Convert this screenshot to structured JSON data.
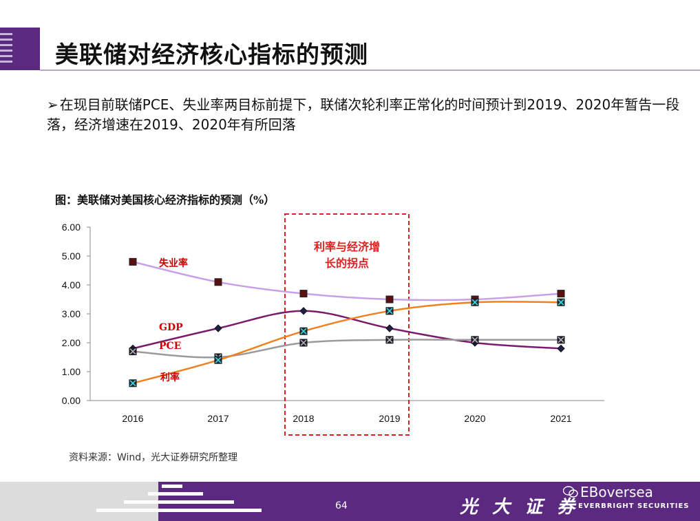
{
  "slide": {
    "title": "美联储对经济核心指标的预测",
    "bullet_text": "在现目前联储PCE、失业率两目标前提下，联储次轮利率正常化的时间预计到2019、2020年暂告一段落，经济增速在2019、2020年有所回落",
    "chart_caption": "图：美联储对美国核心经济指标的预测（%）",
    "source": "资料来源：Wind，光大证券研究所整理",
    "page_number": "64",
    "brand_cn": "光 大 证 券",
    "brand_en": "EVERBRIGHT SECURITIES",
    "watermark": "EBoversea"
  },
  "chart_data": {
    "type": "line",
    "categories": [
      "2016",
      "2017",
      "2018",
      "2019",
      "2020",
      "2021"
    ],
    "yticks": [
      "0.00",
      "1.00",
      "2.00",
      "3.00",
      "4.00",
      "5.00",
      "6.00"
    ],
    "ylim": [
      0,
      6
    ],
    "series": [
      {
        "name": "失业率",
        "values": [
          4.8,
          4.1,
          3.7,
          3.5,
          3.5,
          3.7
        ],
        "color": "#c6a0e8",
        "marker": "square"
      },
      {
        "name": "GDP",
        "values": [
          1.8,
          2.5,
          3.1,
          2.5,
          2.0,
          1.8
        ],
        "color": "#7a1a6e",
        "marker": "diamond"
      },
      {
        "name": "PCE",
        "values": [
          1.7,
          1.5,
          2.0,
          2.1,
          2.1,
          2.1
        ],
        "color": "#9a9a9a",
        "marker": "xsquare"
      },
      {
        "name": "利率",
        "values": [
          0.6,
          1.4,
          2.4,
          3.1,
          3.4,
          3.4
        ],
        "color": "#f08020",
        "marker": "xsquare-teal"
      }
    ],
    "highlight": {
      "categories": [
        "2018",
        "2019"
      ],
      "label_line1": "利率与经济增",
      "label_line2": "长的拐点",
      "color": "#e02020"
    },
    "label_color": "#cc0000"
  }
}
